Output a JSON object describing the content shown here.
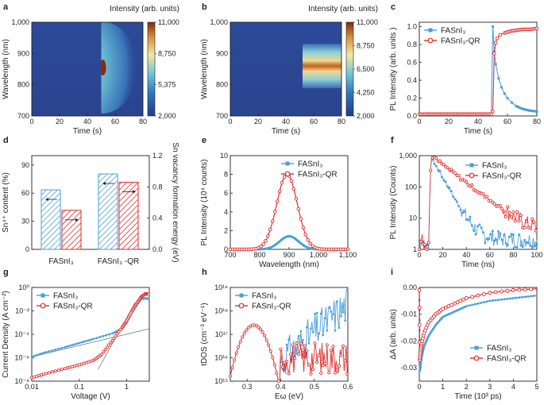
{
  "colors": {
    "fasni": "#4a9fd8",
    "fasni_qr": "#e32b2b",
    "heat_low": "#2a3f8f",
    "heat_mid": "#5bb6cf",
    "heat_high": "#c4571a"
  },
  "chart_data": [
    {
      "id": "a",
      "type": "heatmap",
      "panel_letter": "a",
      "title": "Intensity (arb. units)",
      "xlabel": "Time (s)",
      "ylabel": "Wavelength (nm)",
      "xlim": [
        0,
        80
      ],
      "ylim": [
        700,
        1000
      ],
      "xticks": [
        0,
        20,
        40,
        60,
        80
      ],
      "xtick_labels": [
        "0",
        "20",
        "40",
        "60",
        "80"
      ],
      "yticks": [
        700,
        800,
        900,
        1000
      ],
      "ytick_labels": [
        "700",
        "800",
        "900",
        "1,000"
      ],
      "colorbar_ticks": [
        "11,000",
        "8,750",
        "5,375",
        "2,000"
      ],
      "feature": {
        "onset_time": 50,
        "peak_wavelength": 855,
        "max_intensity": 11000,
        "min_intensity": 2000,
        "behaviour": "flash then decay"
      }
    },
    {
      "id": "b",
      "type": "heatmap",
      "panel_letter": "b",
      "title": "Intensity (arb. units)",
      "xlabel": "Time (s)",
      "ylabel": "Wavelength (nm)",
      "xlim": [
        0,
        80
      ],
      "ylim": [
        700,
        1000
      ],
      "xticks": [
        0,
        20,
        40,
        60,
        80
      ],
      "xtick_labels": [
        "0",
        "20",
        "40",
        "60",
        "80"
      ],
      "yticks": [
        700,
        800,
        900,
        1000
      ],
      "ytick_labels": [
        "700",
        "800",
        "900",
        "1,000"
      ],
      "colorbar_ticks": [
        "11,000",
        "8,750",
        "6,500",
        "4,250",
        "2,000"
      ],
      "feature": {
        "onset_time": 52,
        "peak_wavelength": 860,
        "max_intensity": 11000,
        "min_intensity": 2000,
        "behaviour": "rise then stable"
      }
    },
    {
      "id": "c",
      "type": "line",
      "panel_letter": "c",
      "xlabel": "Time (s)",
      "ylabel": "PL Intensity  (arb. units )",
      "xlim": [
        0,
        80
      ],
      "ylim": [
        0,
        1.05
      ],
      "xticks": [
        0,
        20,
        40,
        60,
        80
      ],
      "xtick_labels": [
        "0",
        "20",
        "40",
        "60",
        "80"
      ],
      "yticks": [
        0,
        0.2,
        0.4,
        0.6,
        0.8,
        1.0
      ],
      "ytick_labels": [
        "0.0",
        "0.2",
        "0.4",
        "0.6",
        "0.8",
        "1.0"
      ],
      "legend": [
        "FASnI₃",
        "FASnI₃-QR"
      ],
      "series": [
        {
          "name": "FASnI₃",
          "x": [
            0,
            10,
            20,
            30,
            40,
            49,
            50,
            51,
            52,
            54,
            56,
            58,
            60,
            63,
            66,
            70,
            75,
            80
          ],
          "y": [
            0.02,
            0.02,
            0.02,
            0.02,
            0.02,
            0.02,
            1.0,
            0.72,
            0.58,
            0.42,
            0.32,
            0.25,
            0.2,
            0.15,
            0.11,
            0.08,
            0.06,
            0.05
          ]
        },
        {
          "name": "FASnI₃-QR",
          "x": [
            0,
            10,
            20,
            30,
            40,
            49,
            50,
            51,
            52,
            53,
            55,
            58,
            62,
            66,
            70,
            75,
            80
          ],
          "y": [
            0.02,
            0.02,
            0.02,
            0.02,
            0.02,
            0.02,
            0.05,
            0.7,
            0.82,
            0.87,
            0.91,
            0.93,
            0.95,
            0.96,
            0.97,
            0.97,
            0.98
          ]
        }
      ]
    },
    {
      "id": "d",
      "type": "bar",
      "panel_letter": "d",
      "xlabel": "",
      "ylabel": "Sn⁴⁺ content (%)",
      "y2label": "Sn vacancy formation energy (eV)",
      "ylim": [
        0,
        100
      ],
      "y2lim": [
        0,
        1.2
      ],
      "yticks": [
        0,
        30,
        60,
        90
      ],
      "ytick_labels": [
        "0",
        "30",
        "60",
        "90"
      ],
      "y2ticks": [
        0,
        0.4,
        0.8,
        1.2
      ],
      "y2tick_labels": [
        "0.0",
        "0.4",
        "0.8",
        "1.2"
      ],
      "categories": [
        "FASnI₃",
        "FASnI₃ -QR"
      ],
      "series": [
        {
          "name": "Sn4+ content",
          "values": [
            63.5,
            80.5
          ]
        },
        {
          "name": "Sn vacancy formation energy",
          "values": [
            0.5,
            0.86
          ]
        }
      ]
    },
    {
      "id": "e",
      "type": "line",
      "panel_letter": "e",
      "xlabel": "Wavelength (nm)",
      "ylabel": "PL Intensity (10⁴ counts)",
      "xlim": [
        700,
        1100
      ],
      "ylim": [
        0,
        10
      ],
      "xticks": [
        700,
        800,
        900,
        1000,
        1100
      ],
      "xtick_labels": [
        "700",
        "800",
        "900",
        "1,000",
        "1,100"
      ],
      "yticks": [
        0,
        2,
        4,
        6,
        8,
        10
      ],
      "ytick_labels": [
        "0",
        "2",
        "4",
        "6",
        "8",
        "10"
      ],
      "legend": [
        "FASnI₃",
        "FASnI₃-QR"
      ],
      "series": [
        {
          "name": "FASnI₃",
          "peak_center": 900,
          "peak_height": 1.4,
          "peak_sigma": 32
        },
        {
          "name": "FASnI₃-QR",
          "peak_center": 893,
          "peak_height": 8.0,
          "peak_sigma": 35
        }
      ]
    },
    {
      "id": "f",
      "type": "scatter",
      "panel_letter": "f",
      "xlabel": "Time (ns)",
      "ylabel": "PL Intensity (Counts)",
      "xlim": [
        0,
        100
      ],
      "ylim": [
        1,
        1000
      ],
      "yscale": "log",
      "xticks": [
        0,
        20,
        40,
        60,
        80,
        100
      ],
      "xtick_labels": [
        "0",
        "20",
        "40",
        "60",
        "80",
        "100"
      ],
      "yticks": [
        1,
        10,
        100,
        1000
      ],
      "ytick_labels": [
        "1",
        "10",
        "100",
        "1,000"
      ],
      "legend": [
        "FASnI₃",
        "FASnI₃-QR"
      ],
      "series": [
        {
          "name": "FASnI₃",
          "rise_time": 10,
          "peak": 900,
          "tau": 6.5,
          "floor": 2
        },
        {
          "name": "FASnI₃-QR",
          "rise_time": 10,
          "peak": 1000,
          "tau": 15,
          "floor": 2.5
        }
      ]
    },
    {
      "id": "g",
      "type": "scatter",
      "panel_letter": "g",
      "xlabel": "Voltage (V)",
      "ylabel": "Current Density (A cm⁻²)",
      "xlim": [
        0.01,
        3
      ],
      "ylim": [
        1e-08,
        1
      ],
      "xscale": "log",
      "yscale": "log",
      "xticks": [
        0.01,
        0.1,
        1
      ],
      "xtick_labels": [
        "0.01",
        "0.1",
        "1"
      ],
      "yticks": [
        1e-08,
        1e-06,
        0.0001,
        0.01,
        1
      ],
      "ytick_labels": [
        "10⁻⁸",
        "10⁻⁶",
        "10⁻⁴",
        "10⁻²",
        "10⁰"
      ],
      "legend": [
        "FASnI₃",
        "FASnI₃-QR"
      ],
      "series": [
        {
          "name": "FASnI₃",
          "x": [
            0.01,
            0.02,
            0.05,
            0.1,
            0.2,
            0.5,
            0.8,
            1.0,
            1.3,
            1.6,
            2.0,
            2.5,
            3.0
          ],
          "y": [
            1.2e-06,
            3e-06,
            8e-06,
            1.8e-05,
            4e-05,
            0.00012,
            0.0003,
            0.001,
            0.008,
            0.03,
            0.1,
            0.12,
            0.1
          ]
        },
        {
          "name": "FASnI₃-QR",
          "x": [
            0.01,
            0.02,
            0.05,
            0.1,
            0.2,
            0.3,
            0.5,
            0.8,
            1.0,
            1.3,
            1.6,
            2.0,
            2.5,
            3.0
          ],
          "y": [
            2e-08,
            4.5e-08,
            1.2e-07,
            2.5e-07,
            6e-07,
            2e-06,
            3e-05,
            0.0004,
            0.0015,
            0.01,
            0.04,
            0.15,
            0.3,
            0.25
          ]
        }
      ],
      "fit_lines": [
        {
          "x": [
            0.01,
            3
          ],
          "y": [
            1.2e-06,
            0.0003
          ]
        },
        {
          "x": [
            0.25,
            1.5
          ],
          "y": [
            1e-07,
            0.05
          ]
        },
        {
          "x": [
            0.6,
            2.5
          ],
          "y": [
            0.0001,
            0.4
          ]
        }
      ]
    },
    {
      "id": "h",
      "type": "scatter",
      "panel_letter": "h",
      "xlabel": "Eω (eV)",
      "ylabel": "tDOS (cm⁻³ eV⁻¹)",
      "xlim": [
        0.25,
        0.6
      ],
      "ylim": [
        1000000000000000.0,
        1e+19
      ],
      "yscale": "log",
      "xticks": [
        0.3,
        0.4,
        0.5,
        0.6
      ],
      "xtick_labels": [
        "0.3",
        "0.4",
        "0.5",
        "0.6"
      ],
      "yticks": [
        1000000000000000.0,
        1e+16,
        1e+17,
        1e+18,
        1e+19
      ],
      "ytick_labels": [
        "10¹⁵",
        "10¹⁶",
        "10¹⁷",
        "10¹⁸",
        "10¹⁹"
      ],
      "legend": [
        "FASnI₃",
        "FASnI₃-QR"
      ],
      "series": [
        {
          "name": "FASnI₃",
          "peak_center": 0.32,
          "peak_height": 2.5e+17,
          "tail": "rising to 5e18 at 0.6 eV"
        },
        {
          "name": "FASnI₃-QR",
          "peak_center": 0.32,
          "peak_height": 2.5e+17,
          "tail": "noisy ~1e16 beyond 0.42 eV"
        }
      ]
    },
    {
      "id": "i",
      "type": "scatter",
      "panel_letter": "i",
      "xlabel": "Time (10³ ps)",
      "ylabel": "ΔA (arb. units)",
      "xlim": [
        0,
        5
      ],
      "ylim": [
        -0.035,
        0.0
      ],
      "xticks": [
        0,
        1,
        2,
        3,
        4,
        5
      ],
      "xtick_labels": [
        "0",
        "1",
        "2",
        "3",
        "4",
        "5"
      ],
      "yticks": [
        -0.03,
        -0.02,
        -0.01,
        0.0
      ],
      "ytick_labels": [
        "-0.03",
        "-0.02",
        "-0.01",
        "0.00"
      ],
      "legend": [
        "FASnI₃",
        "FASnI₃-QR"
      ],
      "series": [
        {
          "name": "FASnI₃",
          "x": [
            0,
            0.02,
            0.05,
            0.1,
            0.2,
            0.4,
            0.7,
            1.0,
            1.5,
            2.0,
            3.0,
            4.0,
            5.0
          ],
          "y": [
            -0.001,
            -0.031,
            -0.029,
            -0.026,
            -0.022,
            -0.018,
            -0.014,
            -0.011,
            -0.009,
            -0.007,
            -0.005,
            -0.004,
            -0.003
          ]
        },
        {
          "name": "FASnI₃-QR",
          "x": [
            0,
            0.02,
            0.05,
            0.1,
            0.2,
            0.4,
            0.7,
            1.0,
            1.5,
            2.0,
            3.0,
            4.0,
            5.0
          ],
          "y": [
            -0.001,
            -0.027,
            -0.024,
            -0.021,
            -0.017,
            -0.013,
            -0.01,
            -0.008,
            -0.006,
            -0.004,
            -0.002,
            -0.001,
            -0.0005
          ]
        }
      ]
    }
  ]
}
